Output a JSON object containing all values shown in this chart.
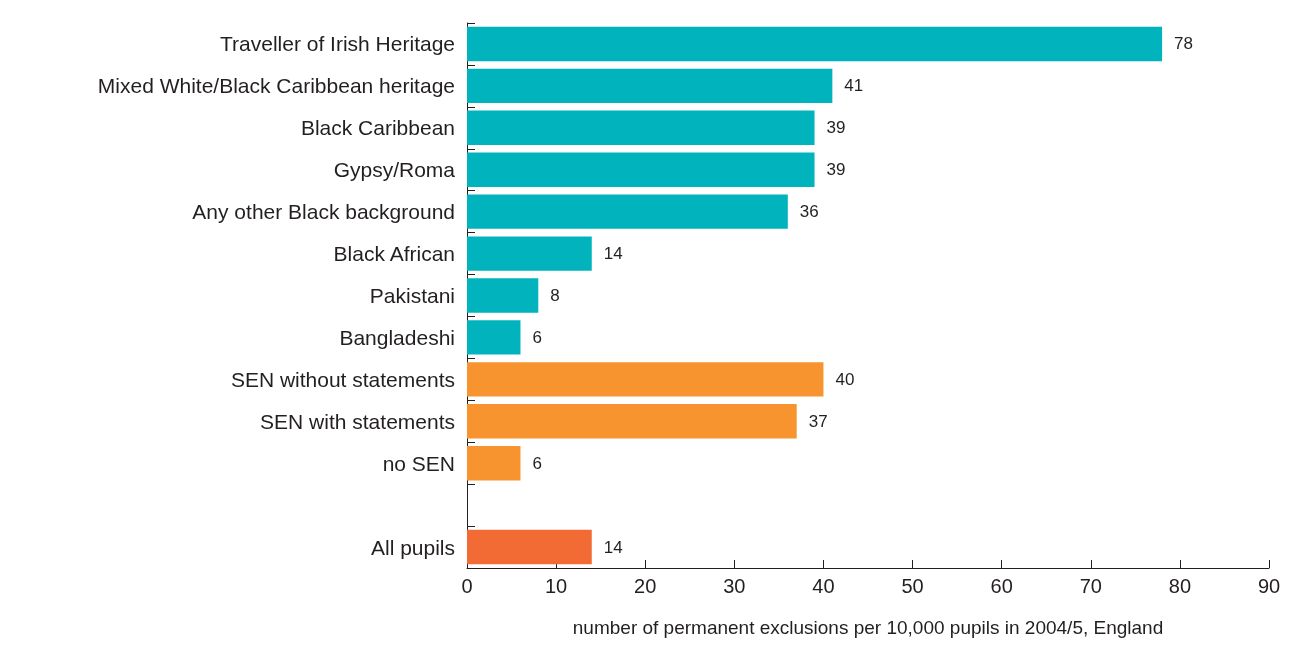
{
  "chart_data": {
    "type": "bar",
    "orientation": "horizontal",
    "xlabel": "number of permanent exclusions per 10,000 pupils in 2004/5, England",
    "categories": [
      "Traveller of Irish Heritage",
      "Mixed White/Black Caribbean heritage",
      "Black Caribbean",
      "Gypsy/Roma",
      "Any other Black background",
      "Black African",
      "Pakistani",
      "Bangladeshi",
      "SEN without statements",
      "SEN with statements",
      "no SEN",
      null,
      "All pupils"
    ],
    "values": [
      78,
      41,
      39,
      39,
      36,
      14,
      8,
      6,
      40,
      37,
      6,
      null,
      14
    ],
    "colors": [
      "#00b3bd",
      "#00b3bd",
      "#00b3bd",
      "#00b3bd",
      "#00b3bd",
      "#00b3bd",
      "#00b3bd",
      "#00b3bd",
      "#f7942f",
      "#f7942f",
      "#f7942f",
      "#f7942f",
      "#f26b35"
    ],
    "xlim": [
      0,
      90
    ],
    "xticks": [
      0,
      10,
      20,
      30,
      40,
      50,
      60,
      70,
      80,
      90
    ],
    "data_labels": true,
    "grid": false
  }
}
